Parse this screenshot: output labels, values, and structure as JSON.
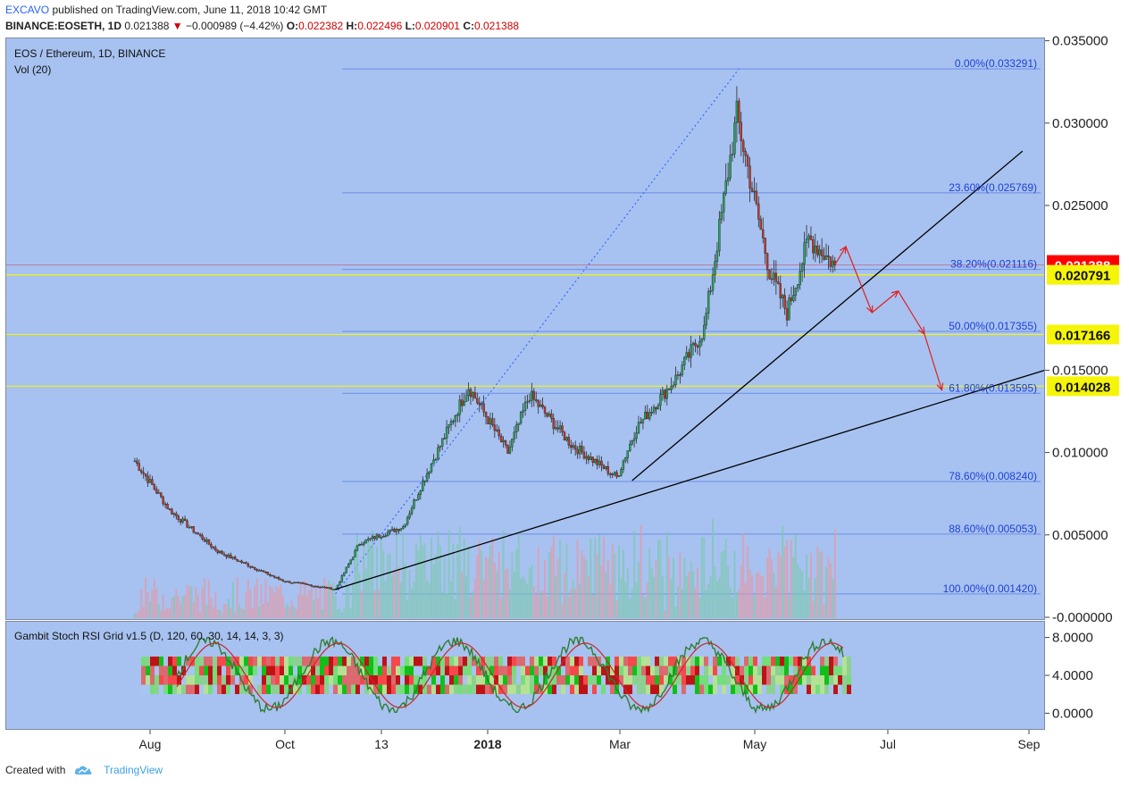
{
  "header": {
    "author": "EXCAVO",
    "published": "published on TradingView.com, June 11, 2018 10:42 GMT",
    "symbol": "BINANCE:EOSETH, 1D",
    "last": "0.021388",
    "change": "−0.000989 (−4.42%)",
    "o_label": "O:",
    "o": "0.022382",
    "h_label": "H:",
    "h": "0.022496",
    "l_label": "L:",
    "l": "0.020901",
    "c_label": "C:",
    "c": "0.021388"
  },
  "pane_title": "EOS / Ethereum, 1D, BINANCE",
  "vol_label": "Vol (20)",
  "sub_title": "Gambit Stoch RSI Grid v1.5 (D, 120, 60, 30, 14, 14, 3, 3)",
  "footer": {
    "created": "Created with",
    "brand": "TradingView"
  },
  "colors": {
    "pane_bg": "#a7c2f0",
    "up": "#26a65b",
    "down": "#c0392b",
    "fib": "#2962ff",
    "support": "#f5f50a",
    "price_tag": "#ff0000"
  },
  "chart_data": {
    "type": "candlestick",
    "title": "EOS / Ethereum, 1D, BINANCE",
    "x_ticks": [
      "Aug",
      "Oct",
      "13",
      "2018",
      "Mar",
      "May",
      "Jul",
      "Sep"
    ],
    "y_ticks": [
      "0.035000",
      "0.030000",
      "0.025000",
      "0.015000",
      "0.010000",
      "0.005000",
      "-0.000000"
    ],
    "ylim": [
      -0.0003,
      0.035
    ],
    "price_key": [
      {
        "date": "2017-07-25",
        "close": 0.0095
      },
      {
        "date": "2017-08-10",
        "close": 0.0065
      },
      {
        "date": "2017-09-01",
        "close": 0.004
      },
      {
        "date": "2017-10-01",
        "close": 0.0022
      },
      {
        "date": "2017-10-25",
        "close": 0.0017
      },
      {
        "date": "2017-11-05",
        "close": 0.0045
      },
      {
        "date": "2017-11-25",
        "close": 0.0055
      },
      {
        "date": "2017-12-05",
        "close": 0.0085
      },
      {
        "date": "2017-12-25",
        "close": 0.014
      },
      {
        "date": "2018-01-12",
        "close": 0.01
      },
      {
        "date": "2018-01-22",
        "close": 0.0135
      },
      {
        "date": "2018-02-10",
        "close": 0.0105
      },
      {
        "date": "2018-03-03",
        "close": 0.0085
      },
      {
        "date": "2018-03-12",
        "close": 0.0115
      },
      {
        "date": "2018-03-30",
        "close": 0.0145
      },
      {
        "date": "2018-04-12",
        "close": 0.0175
      },
      {
        "date": "2018-04-27",
        "close": 0.0305
      },
      {
        "date": "2018-05-04",
        "close": 0.026
      },
      {
        "date": "2018-05-12",
        "close": 0.021
      },
      {
        "date": "2018-05-20",
        "close": 0.0185
      },
      {
        "date": "2018-05-30",
        "close": 0.023
      },
      {
        "date": "2018-06-11",
        "close": 0.021388
      }
    ],
    "fib_levels": [
      {
        "label": "0.00%(0.033291)",
        "value": 0.033291
      },
      {
        "label": "23.60%(0.025769)",
        "value": 0.025769
      },
      {
        "label": "38.20%(0.021116)",
        "value": 0.021116
      },
      {
        "label": "50.00%(0.017355)",
        "value": 0.017355
      },
      {
        "label": "61.80%(0.013595)",
        "value": 0.013595
      },
      {
        "label": "78.60%(0.008240)",
        "value": 0.00824
      },
      {
        "label": "88.60%(0.005053)",
        "value": 0.005053
      },
      {
        "label": "100.00%(0.001420)",
        "value": 0.00142
      }
    ],
    "support_levels": [
      {
        "label": "0.020791",
        "value": 0.020791
      },
      {
        "label": "0.017166",
        "value": 0.017166
      },
      {
        "label": "0.014028",
        "value": 0.014028
      }
    ],
    "last_price": {
      "label": "0.021388",
      "value": 0.021388
    },
    "trendlines": [
      {
        "from": {
          "date": "2017-10-25",
          "value": 0.0017
        },
        "to": {
          "date": "2018-09-25",
          "value": 0.0154
        }
      },
      {
        "from": {
          "date": "2018-03-10",
          "value": 0.0083
        },
        "to": {
          "date": "2018-09-05",
          "value": 0.0283
        }
      }
    ],
    "projection_path": [
      {
        "date": "2018-06-16",
        "value": 0.0225
      },
      {
        "date": "2018-06-28",
        "value": 0.0185
      },
      {
        "date": "2018-07-10",
        "value": 0.0198
      },
      {
        "date": "2018-07-22",
        "value": 0.0172
      },
      {
        "date": "2018-07-30",
        "value": 0.0138
      }
    ],
    "stoch_rsi": {
      "y_ticks": [
        "8.0000",
        "4.0000",
        "0.0000"
      ],
      "ylim": [
        -0.8,
        9.2
      ]
    }
  }
}
